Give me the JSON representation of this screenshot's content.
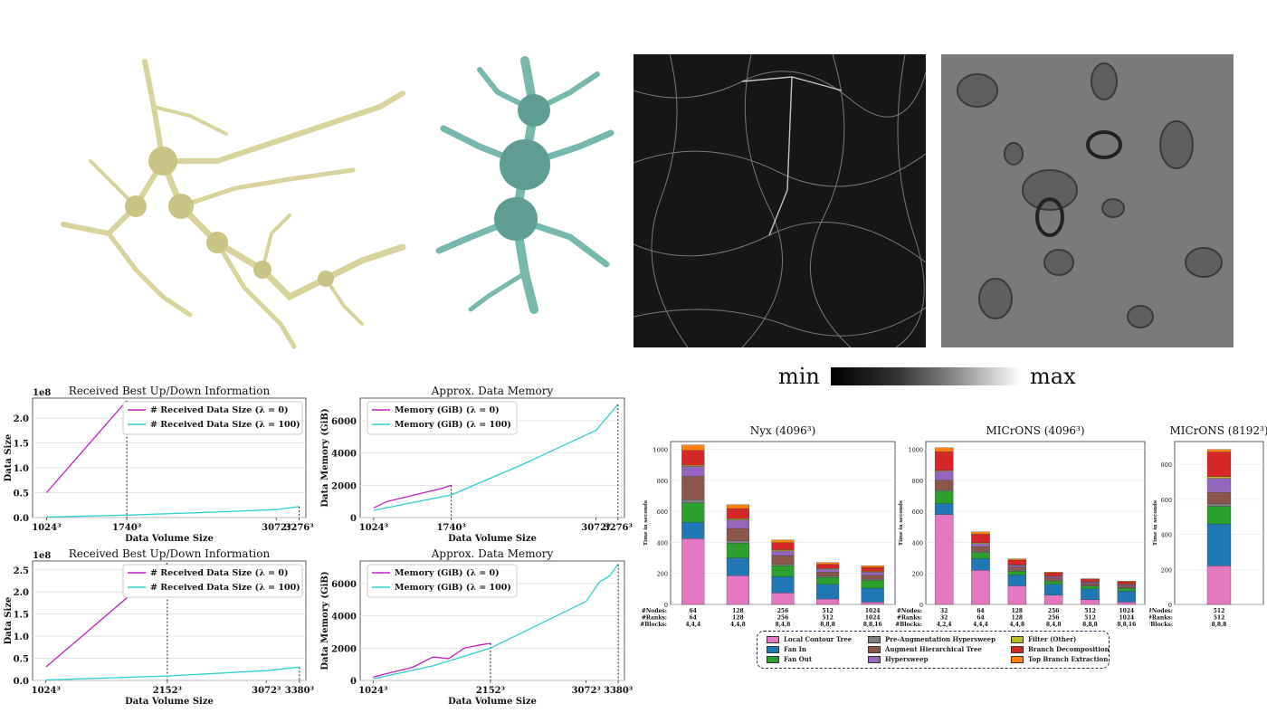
{
  "colorbar": {
    "min_label": "min",
    "max_label": "max"
  },
  "legend_small": {
    "l0": "# Received Data Size (λ = 0)",
    "l100": "# Received Data Size (λ = 100)",
    "m0": "Memory (GiB) (λ = 0)",
    "m100": "Memory (GiB) (λ = 100)"
  },
  "small_charts": [
    {
      "title": "Received Best Up/Down Information",
      "ylabel": "Data Size",
      "xlabel": "Data Volume Size",
      "multiplier": "1e8",
      "yticks": [
        "0.0",
        "0.5",
        "1.0",
        "1.5",
        "2.0"
      ],
      "xticks": [
        "1024³",
        "1740³",
        "3072³",
        "3276³"
      ]
    },
    {
      "title": "Approx. Data Memory",
      "ylabel": "Data Memory (GiB)",
      "xlabel": "Data Volume Size",
      "yticks": [
        "0",
        "2000",
        "4000",
        "6000"
      ],
      "xticks": [
        "1024³",
        "1740³",
        "3072³",
        "3276³"
      ]
    },
    {
      "title": "Received Best Up/Down Information",
      "ylabel": "Data Size",
      "xlabel": "Data Volume Size",
      "multiplier": "1e8",
      "yticks": [
        "0.0",
        "0.5",
        "1.0",
        "1.5",
        "2.0",
        "2.5"
      ],
      "xticks": [
        "1024³",
        "2152³",
        "3072³",
        "3380³"
      ]
    },
    {
      "title": "Approx. Data Memory",
      "ylabel": "Data Memory (GiB)",
      "xlabel": "Data Volume Size",
      "yticks": [
        "0",
        "2000",
        "4000",
        "6000"
      ],
      "xticks": [
        "1024³",
        "2152³",
        "3072³",
        "3380³"
      ]
    }
  ],
  "bar_charts": [
    {
      "title": "Nyx (4096³)",
      "ylabel": "Time in seconds",
      "yticks": [
        "0",
        "200",
        "400",
        "600",
        "800",
        "1000"
      ]
    },
    {
      "title": "MICrONS (4096³)",
      "ylabel": "Time in seconds",
      "yticks": [
        "0",
        "200",
        "400",
        "600",
        "800",
        "1000"
      ]
    },
    {
      "title": "MICrONS (8192³)",
      "ylabel": "Time in seconds",
      "yticks": [
        "0",
        "200",
        "400",
        "600",
        "800"
      ]
    }
  ],
  "config_headers": [
    "#Nodes:",
    "#Ranks:",
    "#Blocks:"
  ],
  "configs_nyx": [
    [
      "64",
      "64",
      "4,4,4"
    ],
    [
      "128",
      "128",
      "4,4,8"
    ],
    [
      "256",
      "256",
      "8,4,8"
    ],
    [
      "512",
      "512",
      "8,8,8"
    ],
    [
      "1024",
      "1024",
      "8,8,16"
    ]
  ],
  "configs_mic4": [
    [
      "32",
      "32",
      "4,2,4"
    ],
    [
      "64",
      "64",
      "4,4,4"
    ],
    [
      "128",
      "128",
      "4,4,8"
    ],
    [
      "256",
      "256",
      "8,4,8"
    ],
    [
      "512",
      "512",
      "8,8,8"
    ],
    [
      "1024",
      "1024",
      "8,8,16"
    ]
  ],
  "configs_mic8": [
    [
      "512",
      "512",
      "8,8,8"
    ]
  ],
  "stage_legend": [
    {
      "name": "Local Contour Tree",
      "color": "#e377c2"
    },
    {
      "name": "Fan In",
      "color": "#1f77b4"
    },
    {
      "name": "Fan Out",
      "color": "#2ca02c"
    },
    {
      "name": "Pre-Augmentation Hypersweep",
      "color": "#7f7f7f"
    },
    {
      "name": "Augment Hierarchical Tree",
      "color": "#8c564b"
    },
    {
      "name": "Hypersweep",
      "color": "#9467bd"
    },
    {
      "name": "Filter (Other)",
      "color": "#bcbd22"
    },
    {
      "name": "Branch Decomposition",
      "color": "#d62728"
    },
    {
      "name": "Top Branch Extraction",
      "color": "#ff7f0e"
    }
  ],
  "chart_data": [
    {
      "type": "line",
      "title": "Received Best Up/Down Information",
      "xlabel": "Data Volume Size",
      "ylabel": "Data Size",
      "ylim": [
        0,
        240000000
      ],
      "x": [
        1024,
        1740,
        3072,
        3276
      ],
      "series": [
        {
          "name": "# Received Data Size (λ = 0)",
          "color": "#c020c0",
          "points": [
            [
              1024,
              50000000
            ],
            [
              1740,
              235000000
            ]
          ]
        },
        {
          "name": "# Received Data Size (λ = 100)",
          "color": "#2ecfcf",
          "points": [
            [
              1024,
              1000000
            ],
            [
              1740,
              5000000
            ],
            [
              2400,
              10000000
            ],
            [
              3072,
              16000000
            ],
            [
              3276,
              22000000
            ]
          ]
        }
      ]
    },
    {
      "type": "line",
      "title": "Approx. Data Memory",
      "xlabel": "Data Volume Size",
      "ylabel": "Data Memory (GiB)",
      "ylim": [
        0,
        7400
      ],
      "x": [
        1024,
        1740,
        3072,
        3276
      ],
      "series": [
        {
          "name": "Memory (GiB) (λ = 0)",
          "color": "#c020c0",
          "points": [
            [
              1024,
              600
            ],
            [
              1150,
              1000
            ],
            [
              1400,
              1400
            ],
            [
              1650,
              1800
            ],
            [
              1740,
              2000
            ]
          ]
        },
        {
          "name": "Memory (GiB) (λ = 100)",
          "color": "#2ecfcf",
          "points": [
            [
              1024,
              450
            ],
            [
              1740,
              1400
            ],
            [
              2400,
              3300
            ],
            [
              3072,
              5400
            ],
            [
              3276,
              7000
            ]
          ]
        }
      ]
    },
    {
      "type": "line",
      "title": "Received Best Up/Down Information",
      "xlabel": "Data Volume Size",
      "ylabel": "Data Size",
      "ylim": [
        0,
        270000000
      ],
      "x": [
        1024,
        2152,
        3072,
        3380
      ],
      "series": [
        {
          "name": "# Received Data Size (λ = 0)",
          "color": "#c020c0",
          "points": [
            [
              1024,
              30000000
            ],
            [
              2152,
              265000000
            ]
          ]
        },
        {
          "name": "# Received Data Size (λ = 100)",
          "color": "#2ecfcf",
          "points": [
            [
              1024,
              1000000
            ],
            [
              2152,
              10000000
            ],
            [
              3072,
              22000000
            ],
            [
              3380,
              30000000
            ]
          ]
        }
      ]
    },
    {
      "type": "line",
      "title": "Approx. Data Memory",
      "xlabel": "Data Volume Size",
      "ylabel": "Data Memory (GiB)",
      "ylim": [
        0,
        7400
      ],
      "x": [
        1024,
        2152,
        3072,
        3380
      ],
      "series": [
        {
          "name": "Memory (GiB) (λ = 0)",
          "color": "#c020c0",
          "points": [
            [
              1024,
              200
            ],
            [
              1200,
              500
            ],
            [
              1400,
              800
            ],
            [
              1600,
              1450
            ],
            [
              1750,
              1350
            ],
            [
              1900,
              2000
            ],
            [
              2050,
              2200
            ],
            [
              2152,
              2300
            ]
          ]
        },
        {
          "name": "Memory (GiB) (λ = 100)",
          "color": "#2ecfcf",
          "points": [
            [
              1024,
              100
            ],
            [
              1600,
              900
            ],
            [
              2152,
              2000
            ],
            [
              3072,
              4900
            ],
            [
              3200,
              6100
            ],
            [
              3300,
              6500
            ],
            [
              3380,
              7200
            ]
          ]
        }
      ]
    },
    {
      "type": "bar",
      "title": "Nyx (4096³)",
      "ylabel": "Time in seconds",
      "ylim": [
        0,
        1050
      ],
      "categories": [
        "64/64/4,4,4",
        "128/128/4,4,8",
        "256/256/8,4,8",
        "512/512/8,8,8",
        "1024/1024/8,8,16"
      ],
      "stacked": true,
      "series": [
        {
          "name": "Local Contour Tree",
          "values": [
            425,
            185,
            75,
            35,
            15
          ]
        },
        {
          "name": "Fan In",
          "values": [
            105,
            115,
            105,
            95,
            90
          ]
        },
        {
          "name": "Fan Out",
          "values": [
            125,
            95,
            70,
            45,
            50
          ]
        },
        {
          "name": "Pre-Augmentation Hypersweep",
          "values": [
            20,
            15,
            10,
            8,
            8
          ]
        },
        {
          "name": "Augment Hierarchical Tree",
          "values": [
            150,
            80,
            55,
            25,
            25
          ]
        },
        {
          "name": "Hypersweep",
          "values": [
            65,
            55,
            30,
            20,
            20
          ]
        },
        {
          "name": "Filter (Other)",
          "values": [
            8,
            8,
            8,
            5,
            5
          ]
        },
        {
          "name": "Branch Decomposition",
          "values": [
            95,
            65,
            45,
            25,
            25
          ]
        },
        {
          "name": "Top Branch Extraction",
          "values": [
            35,
            25,
            18,
            12,
            12
          ]
        }
      ]
    },
    {
      "type": "bar",
      "title": "MICrONS (4096³)",
      "ylabel": "Time in seconds",
      "ylim": [
        0,
        1050
      ],
      "categories": [
        "32/32/4,2,4",
        "64/64/4,4,4",
        "128/128/4,4,8",
        "256/256/8,4,8",
        "512/512/8,8,8",
        "1024/1024/8,8,16"
      ],
      "stacked": true,
      "series": [
        {
          "name": "Local Contour Tree",
          "values": [
            580,
            220,
            120,
            60,
            30,
            15
          ]
        },
        {
          "name": "Fan In",
          "values": [
            70,
            75,
            70,
            70,
            70,
            70
          ]
        },
        {
          "name": "Fan Out",
          "values": [
            80,
            40,
            25,
            20,
            18,
            18
          ]
        },
        {
          "name": "Pre-Augmentation Hypersweep",
          "values": [
            10,
            8,
            6,
            6,
            5,
            5
          ]
        },
        {
          "name": "Augment Hierarchical Tree",
          "values": [
            60,
            30,
            20,
            14,
            12,
            12
          ]
        },
        {
          "name": "Hypersweep",
          "values": [
            60,
            20,
            12,
            10,
            8,
            8
          ]
        },
        {
          "name": "Filter (Other)",
          "values": [
            5,
            5,
            3,
            3,
            3,
            3
          ]
        },
        {
          "name": "Branch Decomposition",
          "values": [
            120,
            55,
            30,
            20,
            15,
            15
          ]
        },
        {
          "name": "Top Branch Extraction",
          "values": [
            25,
            15,
            8,
            5,
            5,
            4
          ]
        }
      ]
    },
    {
      "type": "bar",
      "title": "MICrONS (8192³)",
      "ylabel": "Time in seconds",
      "ylim": [
        0,
        930
      ],
      "categories": [
        "512/512/8,8,8"
      ],
      "stacked": true,
      "series": [
        {
          "name": "Local Contour Tree",
          "values": [
            220
          ]
        },
        {
          "name": "Fan In",
          "values": [
            240
          ]
        },
        {
          "name": "Fan Out",
          "values": [
            100
          ]
        },
        {
          "name": "Pre-Augmentation Hypersweep",
          "values": [
            15
          ]
        },
        {
          "name": "Augment Hierarchical Tree",
          "values": [
            65
          ]
        },
        {
          "name": "Hypersweep",
          "values": [
            80
          ]
        },
        {
          "name": "Filter (Other)",
          "values": [
            10
          ]
        },
        {
          "name": "Branch Decomposition",
          "values": [
            140
          ]
        },
        {
          "name": "Top Branch Extraction",
          "values": [
            15
          ]
        }
      ]
    }
  ]
}
